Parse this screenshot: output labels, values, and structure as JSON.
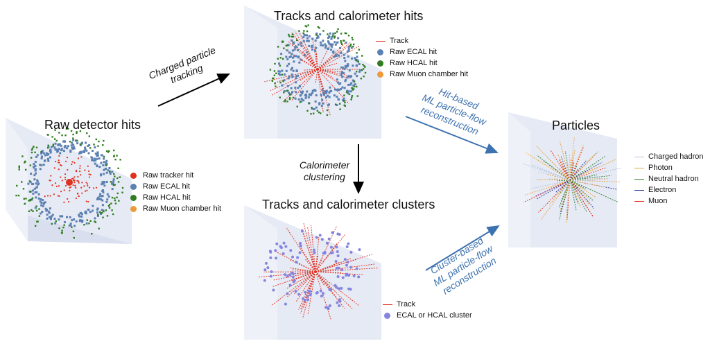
{
  "panels": {
    "raw": {
      "title": "Raw detector hits",
      "legend": [
        {
          "label": "Raw tracker hit",
          "color": "#e0301e",
          "kind": "dot"
        },
        {
          "label": "Raw ECAL hit",
          "color": "#5b80b2",
          "kind": "dot"
        },
        {
          "label": "Raw HCAL hit",
          "color": "#2f7d1f",
          "kind": "dot"
        },
        {
          "label": "Raw Muon chamber hit",
          "color": "#ef9a3a",
          "kind": "dot"
        }
      ]
    },
    "tracks_hits": {
      "title": "Tracks and calorimeter hits",
      "legend": [
        {
          "label": "Track",
          "color": "#e0301e",
          "kind": "line"
        },
        {
          "label": "Raw ECAL hit",
          "color": "#5b80b2",
          "kind": "dot"
        },
        {
          "label": "Raw HCAL hit",
          "color": "#2f7d1f",
          "kind": "dot"
        },
        {
          "label": "Raw Muon chamber hit",
          "color": "#ef9a3a",
          "kind": "dot"
        }
      ]
    },
    "tracks_clusters": {
      "title": "Tracks and calorimeter clusters",
      "legend": [
        {
          "label": "Track",
          "color": "#e0301e",
          "kind": "line"
        },
        {
          "label": "ECAL or HCAL cluster",
          "color": "#8585e0",
          "kind": "dot"
        }
      ]
    },
    "particles": {
      "title": "Particles",
      "legend": [
        {
          "label": "Charged hadron",
          "color": "#b0c4de",
          "kind": "line"
        },
        {
          "label": "Photon",
          "color": "#e8a33d",
          "kind": "line"
        },
        {
          "label": "Neutral hadron",
          "color": "#2e7d32",
          "kind": "line"
        },
        {
          "label": "Electron",
          "color": "#1f2a9a",
          "kind": "line"
        },
        {
          "label": "Muon",
          "color": "#e0301e",
          "kind": "line"
        }
      ]
    }
  },
  "arrows": {
    "tracking": {
      "line1": "Charged particle",
      "line2": "tracking"
    },
    "clustering": {
      "line1": "Calorimeter",
      "line2": "clustering"
    },
    "hit_based": {
      "line1": "Hit-based",
      "line2": "ML particle-flow",
      "line3": "reconstruction"
    },
    "cluster_based": {
      "line1": "Cluster-based",
      "line2": "ML particle-flow",
      "line3": "reconstruction"
    }
  },
  "colors": {
    "panel_bg": "#e6eaf4",
    "panel_grid": "#ffffff",
    "arrow_black": "#000000",
    "arrow_blue": "#3d72b0"
  }
}
